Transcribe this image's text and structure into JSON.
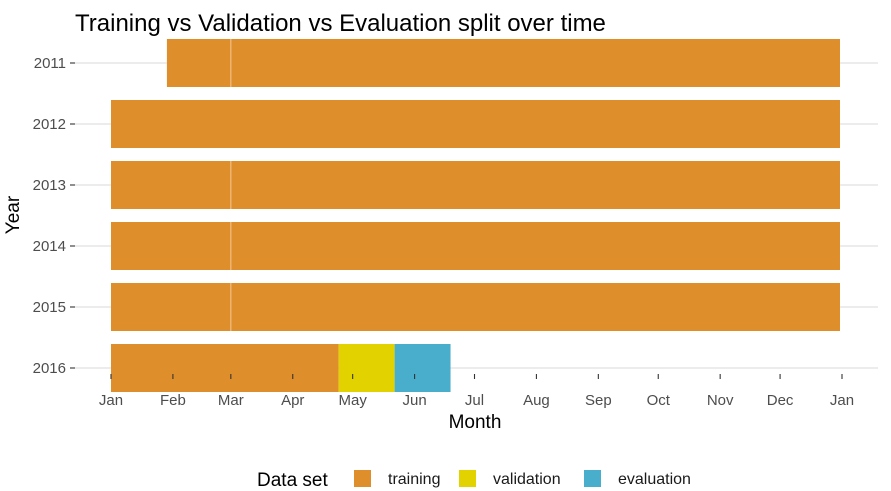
{
  "chart_data": {
    "type": "bar",
    "orientation": "horizontal-stacked",
    "title": "Training vs Validation vs Evaluation split over time",
    "xlabel": "Month",
    "ylabel": "Year",
    "x_ticks": [
      "Jan",
      "Feb",
      "Mar",
      "Apr",
      "May",
      "Jun",
      "Jul",
      "Aug",
      "Sep",
      "Oct",
      "Nov",
      "Dec",
      "Jan"
    ],
    "y_categories": [
      "2011",
      "2012",
      "2013",
      "2014",
      "2015",
      "2016"
    ],
    "xlim": [
      "2000-01-01",
      "2001-01-01"
    ],
    "grid": true,
    "legend_position": "bottom",
    "legend": {
      "title": "Data set",
      "entries": [
        {
          "label": "training",
          "color": "#DF8E2C"
        },
        {
          "label": "validation",
          "color": "#E1D200"
        },
        {
          "label": "evaluation",
          "color": "#48AECB"
        }
      ]
    },
    "series": [
      {
        "name": "training",
        "color": "#DF8E2C",
        "segments": [
          {
            "year": "2011",
            "start": "2000-01-29",
            "end": "2000-12-31"
          },
          {
            "year": "2012",
            "start": "2000-01-01",
            "end": "2000-12-31"
          },
          {
            "year": "2013",
            "start": "2000-01-01",
            "end": "2000-12-31"
          },
          {
            "year": "2014",
            "start": "2000-01-01",
            "end": "2000-12-31"
          },
          {
            "year": "2015",
            "start": "2000-01-01",
            "end": "2000-12-31"
          },
          {
            "year": "2016",
            "start": "2000-01-01",
            "end": "2000-04-24"
          }
        ]
      },
      {
        "name": "validation",
        "color": "#E1D200",
        "segments": [
          {
            "year": "2016",
            "start": "2000-04-24",
            "end": "2000-05-22"
          }
        ]
      },
      {
        "name": "evaluation",
        "color": "#48AECB",
        "segments": [
          {
            "year": "2016",
            "start": "2000-05-22",
            "end": "2000-06-19"
          }
        ]
      }
    ],
    "divider_lines": [
      {
        "year": "2011",
        "date": "2000-03-01"
      },
      {
        "year": "2013",
        "date": "2000-03-01"
      },
      {
        "year": "2014",
        "date": "2000-03-01"
      },
      {
        "year": "2015",
        "date": "2000-03-01"
      }
    ]
  }
}
